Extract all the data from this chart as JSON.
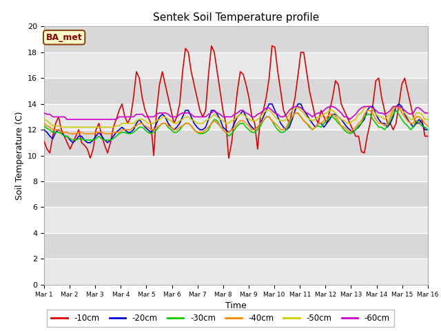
{
  "title": "Sentek Soil Temperature profile",
  "xlabel": "Time",
  "ylabel": "Soil Temperature (C)",
  "annotation": "BA_met",
  "ylim": [
    0,
    20
  ],
  "yticks": [
    0,
    2,
    4,
    6,
    8,
    10,
    12,
    14,
    16,
    18,
    20
  ],
  "xtick_labels": [
    "Mar 1",
    "Mar 2",
    "Mar 3",
    "Mar 4",
    "Mar 5",
    "Mar 6",
    "Mar 7",
    "Mar 8",
    "Mar 9",
    "Mar 10",
    "Mar 11",
    "Mar 12",
    "Mar 13",
    "Mar 14",
    "Mar 15",
    "Mar 16"
  ],
  "fig_bg": "#ffffff",
  "plot_bg": "#e8e8e8",
  "grid_color": "#ffffff",
  "colors": {
    "-10cm": "#dd0000",
    "-20cm": "#0000dd",
    "-30cm": "#00cc00",
    "-40cm": "#ff8800",
    "-50cm": "#cccc00",
    "-60cm": "#cc00cc"
  },
  "series": {
    "-10cm": [
      11.1,
      10.5,
      10.2,
      11.5,
      12.5,
      13.0,
      12.0,
      11.5,
      11.0,
      10.5,
      11.0,
      11.5,
      12.0,
      11.0,
      10.8,
      10.5,
      9.8,
      10.5,
      12.0,
      12.5,
      11.5,
      10.8,
      10.2,
      11.0,
      12.2,
      12.8,
      13.5,
      14.0,
      13.0,
      12.5,
      13.0,
      14.5,
      16.5,
      16.0,
      14.5,
      13.5,
      13.0,
      12.5,
      10.0,
      13.5,
      15.5,
      16.5,
      15.5,
      14.5,
      13.5,
      12.5,
      13.0,
      14.0,
      16.5,
      18.3,
      18.0,
      16.5,
      15.5,
      14.5,
      13.5,
      13.0,
      13.5,
      16.3,
      18.5,
      18.0,
      16.5,
      15.0,
      13.5,
      12.5,
      9.8,
      11.0,
      13.0,
      15.0,
      16.5,
      16.3,
      15.5,
      14.5,
      13.0,
      12.5,
      10.5,
      13.0,
      13.5,
      14.5,
      16.0,
      18.5,
      18.4,
      16.5,
      15.0,
      13.5,
      13.0,
      12.5,
      13.5,
      14.5,
      16.2,
      18.0,
      18.0,
      16.5,
      15.0,
      14.0,
      13.0,
      12.5,
      13.5,
      13.0,
      12.5,
      13.5,
      14.5,
      15.8,
      15.5,
      14.0,
      13.5,
      13.0,
      12.5,
      12.0,
      11.5,
      11.5,
      10.3,
      10.2,
      11.5,
      12.5,
      14.0,
      15.8,
      16.0,
      14.5,
      13.5,
      12.5,
      12.5,
      12.0,
      12.5,
      14.0,
      15.5,
      16.0,
      15.0,
      14.0,
      13.0,
      12.5,
      12.5,
      12.8,
      11.5,
      11.5
    ],
    "-20cm": [
      12.0,
      11.8,
      11.5,
      11.3,
      11.8,
      12.0,
      11.8,
      11.5,
      11.5,
      11.2,
      11.0,
      11.2,
      11.5,
      11.5,
      11.2,
      11.0,
      11.0,
      11.2,
      11.5,
      11.8,
      11.5,
      11.2,
      11.0,
      11.2,
      11.5,
      11.8,
      12.0,
      12.2,
      12.0,
      11.8,
      11.8,
      12.0,
      12.5,
      12.8,
      12.5,
      12.2,
      12.0,
      11.8,
      12.0,
      12.5,
      13.0,
      13.2,
      13.0,
      12.5,
      12.2,
      12.0,
      12.2,
      12.5,
      13.0,
      13.5,
      13.5,
      13.0,
      12.5,
      12.2,
      12.0,
      12.0,
      12.2,
      12.8,
      13.5,
      13.5,
      13.2,
      12.8,
      12.2,
      12.0,
      11.8,
      12.0,
      12.5,
      13.0,
      13.2,
      13.5,
      13.0,
      12.5,
      12.2,
      12.0,
      12.2,
      12.5,
      13.0,
      13.5,
      14.0,
      14.0,
      13.5,
      13.0,
      12.5,
      12.2,
      12.0,
      12.2,
      12.8,
      13.5,
      14.0,
      14.0,
      13.5,
      13.2,
      12.8,
      12.5,
      12.2,
      12.5,
      12.5,
      12.2,
      12.5,
      12.8,
      13.2,
      13.2,
      13.0,
      12.8,
      12.5,
      12.2,
      12.0,
      11.8,
      12.0,
      12.2,
      12.5,
      12.8,
      13.5,
      13.8,
      13.8,
      13.2,
      12.8,
      12.5,
      12.5,
      12.2,
      12.5,
      13.0,
      13.8,
      14.0,
      13.8,
      13.2,
      12.8,
      12.5,
      12.2,
      12.5,
      12.8,
      12.5,
      12.0,
      12.0
    ],
    "-30cm": [
      12.3,
      12.1,
      12.0,
      11.8,
      11.8,
      11.8,
      11.7,
      11.5,
      11.5,
      11.3,
      11.2,
      11.2,
      11.3,
      11.3,
      11.2,
      11.2,
      11.2,
      11.2,
      11.3,
      11.5,
      11.3,
      11.2,
      11.2,
      11.2,
      11.3,
      11.5,
      11.7,
      11.8,
      11.8,
      11.7,
      11.7,
      11.8,
      12.0,
      12.2,
      12.2,
      12.0,
      11.8,
      11.7,
      11.8,
      12.0,
      12.3,
      12.5,
      12.5,
      12.2,
      12.0,
      11.8,
      11.8,
      12.0,
      12.3,
      12.5,
      12.5,
      12.3,
      12.0,
      11.8,
      11.7,
      11.7,
      11.8,
      12.0,
      12.5,
      12.8,
      12.7,
      12.3,
      12.0,
      11.8,
      11.5,
      11.7,
      12.0,
      12.3,
      12.5,
      12.5,
      12.2,
      12.0,
      11.8,
      11.8,
      12.0,
      12.3,
      12.7,
      13.0,
      13.0,
      12.7,
      12.3,
      12.0,
      11.8,
      11.8,
      12.0,
      12.5,
      13.0,
      13.3,
      13.3,
      13.0,
      12.7,
      12.5,
      12.2,
      12.0,
      12.2,
      12.3,
      12.2,
      12.5,
      12.7,
      13.0,
      13.0,
      12.8,
      12.5,
      12.3,
      12.0,
      11.8,
      11.7,
      11.8,
      12.0,
      12.3,
      12.5,
      13.0,
      13.2,
      13.2,
      12.8,
      12.5,
      12.2,
      12.2,
      12.0,
      12.3,
      12.7,
      13.2,
      13.5,
      13.2,
      12.8,
      12.5,
      12.3,
      12.0,
      12.2,
      12.7,
      12.5,
      12.3,
      12.2,
      12.0
    ],
    "-40cm": [
      12.5,
      12.3,
      12.2,
      12.0,
      12.0,
      12.0,
      11.8,
      11.8,
      11.8,
      11.7,
      11.7,
      11.7,
      11.8,
      11.8,
      11.7,
      11.7,
      11.7,
      11.7,
      11.8,
      11.8,
      11.8,
      11.7,
      11.7,
      11.7,
      11.8,
      11.8,
      11.8,
      12.0,
      12.0,
      12.0,
      12.0,
      12.2,
      12.3,
      12.5,
      12.5,
      12.3,
      12.2,
      12.0,
      12.0,
      12.2,
      12.3,
      12.5,
      12.5,
      12.3,
      12.2,
      12.0,
      12.0,
      12.2,
      12.3,
      12.5,
      12.5,
      12.3,
      12.0,
      11.8,
      11.8,
      11.8,
      12.0,
      12.2,
      12.5,
      12.7,
      12.5,
      12.3,
      12.0,
      11.8,
      11.8,
      12.0,
      12.2,
      12.5,
      12.7,
      12.7,
      12.5,
      12.3,
      12.0,
      12.0,
      12.2,
      12.5,
      12.7,
      13.0,
      13.0,
      12.7,
      12.5,
      12.3,
      12.0,
      12.0,
      12.2,
      12.7,
      13.0,
      13.3,
      13.3,
      13.0,
      12.7,
      12.5,
      12.3,
      12.0,
      12.2,
      12.5,
      12.5,
      12.7,
      13.0,
      13.2,
      13.2,
      13.0,
      12.7,
      12.3,
      12.2,
      12.0,
      11.8,
      12.0,
      12.2,
      12.5,
      12.7,
      13.2,
      13.5,
      13.5,
      13.2,
      12.8,
      12.5,
      12.5,
      12.3,
      12.5,
      13.0,
      13.5,
      13.8,
      13.7,
      13.3,
      13.0,
      12.7,
      12.5,
      12.5,
      13.0,
      13.0,
      12.8,
      12.5,
      12.3
    ],
    "-50cm": [
      12.8,
      12.7,
      12.5,
      12.3,
      12.3,
      12.3,
      12.2,
      12.2,
      12.2,
      12.2,
      12.2,
      12.2,
      12.2,
      12.2,
      12.2,
      12.2,
      12.2,
      12.2,
      12.2,
      12.2,
      12.2,
      12.2,
      12.2,
      12.2,
      12.2,
      12.3,
      12.3,
      12.5,
      12.5,
      12.5,
      12.5,
      12.5,
      12.7,
      12.8,
      12.8,
      12.7,
      12.5,
      12.5,
      12.5,
      12.7,
      12.8,
      13.0,
      13.0,
      12.8,
      12.7,
      12.5,
      12.5,
      12.7,
      12.8,
      13.0,
      13.0,
      12.8,
      12.7,
      12.5,
      12.5,
      12.5,
      12.7,
      12.8,
      13.0,
      13.2,
      13.0,
      12.8,
      12.7,
      12.5,
      12.5,
      12.7,
      12.8,
      13.0,
      13.2,
      13.2,
      13.0,
      12.8,
      12.7,
      12.7,
      12.8,
      13.0,
      13.3,
      13.5,
      13.5,
      13.3,
      13.0,
      12.8,
      12.7,
      12.7,
      12.8,
      13.2,
      13.5,
      13.7,
      13.7,
      13.5,
      13.3,
      13.0,
      12.8,
      12.7,
      12.8,
      13.0,
      13.0,
      13.2,
      13.3,
      13.5,
      13.5,
      13.3,
      13.0,
      12.8,
      12.7,
      12.5,
      12.5,
      12.7,
      12.8,
      13.2,
      13.3,
      13.7,
      13.8,
      13.8,
      13.5,
      13.2,
      13.0,
      13.0,
      12.8,
      13.0,
      13.3,
      13.7,
      13.8,
      13.8,
      13.5,
      13.3,
      13.0,
      12.8,
      12.8,
      13.3,
      13.3,
      13.2,
      12.8,
      12.8
    ],
    "-60cm": [
      13.3,
      13.2,
      13.2,
      13.0,
      13.0,
      13.0,
      13.0,
      13.0,
      12.8,
      12.8,
      12.8,
      12.8,
      12.8,
      12.8,
      12.8,
      12.8,
      12.8,
      12.8,
      12.8,
      12.8,
      12.8,
      12.8,
      12.8,
      12.8,
      12.8,
      12.8,
      13.0,
      13.0,
      13.0,
      13.0,
      13.0,
      13.0,
      13.2,
      13.2,
      13.2,
      13.0,
      13.0,
      13.0,
      13.0,
      13.2,
      13.3,
      13.3,
      13.3,
      13.2,
      13.0,
      13.0,
      13.0,
      13.2,
      13.3,
      13.3,
      13.3,
      13.2,
      13.0,
      13.0,
      13.0,
      13.0,
      13.0,
      13.2,
      13.3,
      13.5,
      13.3,
      13.2,
      13.0,
      13.0,
      13.0,
      13.0,
      13.2,
      13.3,
      13.5,
      13.5,
      13.3,
      13.2,
      13.0,
      13.0,
      13.2,
      13.3,
      13.5,
      13.7,
      13.7,
      13.5,
      13.3,
      13.2,
      13.0,
      13.0,
      13.2,
      13.5,
      13.7,
      13.8,
      13.8,
      13.7,
      13.5,
      13.3,
      13.2,
      13.0,
      13.2,
      13.3,
      13.3,
      13.5,
      13.7,
      13.8,
      13.8,
      13.7,
      13.5,
      13.3,
      13.0,
      13.0,
      12.8,
      13.0,
      13.2,
      13.5,
      13.7,
      13.8,
      13.8,
      13.8,
      13.7,
      13.5,
      13.3,
      13.3,
      13.2,
      13.3,
      13.5,
      13.8,
      13.8,
      13.8,
      13.7,
      13.5,
      13.3,
      13.2,
      13.3,
      13.7,
      13.7,
      13.5,
      13.3,
      13.3
    ]
  }
}
